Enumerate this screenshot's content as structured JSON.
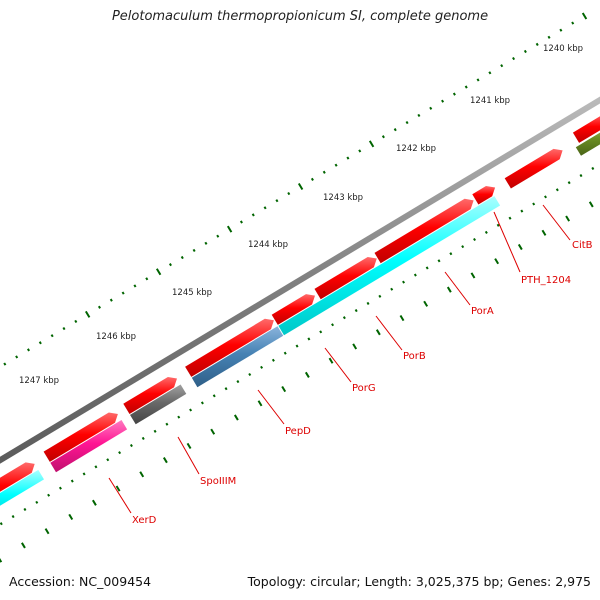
{
  "title": "Pelotomaculum thermopropionicum SI, complete genome",
  "footer": {
    "accession": "Accession: NC_009454",
    "topology": "Topology: circular; Length: 3,025,375 bp; Genes: 2,975"
  },
  "colors": {
    "backbone": "#808080",
    "forward": "#ff0000",
    "cyan": "#00ffff",
    "magenta": "#ff1493",
    "blue": "#4682b4",
    "gray": "#696969",
    "olive": "#6b8e23",
    "tick": "#006400",
    "label": "#dd0000"
  },
  "scale_labels": [
    "1240 kbp",
    "1241 kbp",
    "1242 kbp",
    "1243 kbp",
    "1244 kbp",
    "1245 kbp",
    "1246 kbp",
    "1247 kbp"
  ],
  "gene_labels": [
    "CitB",
    "PTH_1204",
    "PorA",
    "PorB",
    "PorG",
    "PepD",
    "SpoIIIM",
    "XerD"
  ]
}
